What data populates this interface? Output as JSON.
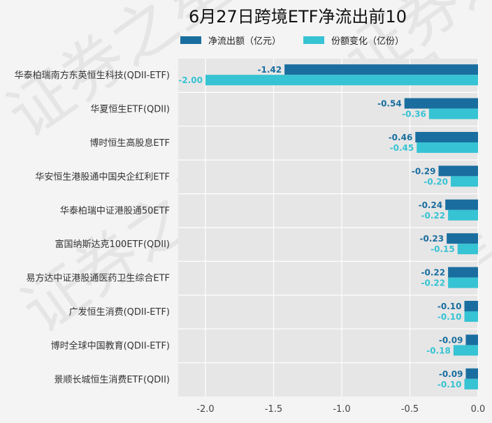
{
  "chart_data": {
    "type": "bar",
    "orientation": "horizontal",
    "title": "6月27日跨境ETF净流出前10",
    "categories": [
      "华泰柏瑞南方东英恒生科技(QDII-ETF)",
      "华夏恒生ETF(QDII)",
      "博时恒生高股息ETF",
      "华安恒生港股通中国央企红利ETF",
      "华泰柏瑞中证港股通50ETF",
      "富国纳斯达克100ETF(QDII)",
      "易方达中证港股通医药卫生综合ETF",
      "广发恒生消费(QDII-ETF)",
      "博时全球中国教育(QDII-ETF)",
      "景顺长城恒生消费ETF(QDII)"
    ],
    "series": [
      {
        "name": "净流出额（亿元）",
        "color": "#1a6e9f",
        "values": [
          -1.42,
          -0.54,
          -0.46,
          -0.29,
          -0.24,
          -0.23,
          -0.22,
          -0.1,
          -0.09,
          -0.09
        ],
        "labels": [
          "-1.42",
          "-0.54",
          "-0.46",
          "-0.29",
          "-0.24",
          "-0.23",
          "-0.22",
          "-0.10",
          "-0.09",
          "-0.09"
        ]
      },
      {
        "name": "份额变化（亿份）",
        "color": "#36c3d3",
        "values": [
          -2.0,
          -0.36,
          -0.45,
          -0.2,
          -0.22,
          -0.15,
          -0.22,
          -0.1,
          -0.18,
          -0.1
        ],
        "labels": [
          "-2.00",
          "-0.36",
          "-0.45",
          "-0.20",
          "-0.22",
          "-0.15",
          "-0.22",
          "-0.10",
          "-0.18",
          "-0.10"
        ]
      }
    ],
    "xlim": [
      -2.2,
      0.0
    ],
    "xticks": [
      -2.0,
      -1.5,
      -1.0,
      -0.5,
      0.0
    ],
    "xtick_labels": [
      "-2.0",
      "-1.5",
      "-1.0",
      "-0.5",
      "0.0"
    ],
    "grid": true,
    "legend_position": "top",
    "xlabel": "",
    "ylabel": ""
  },
  "watermark": "证券之星"
}
